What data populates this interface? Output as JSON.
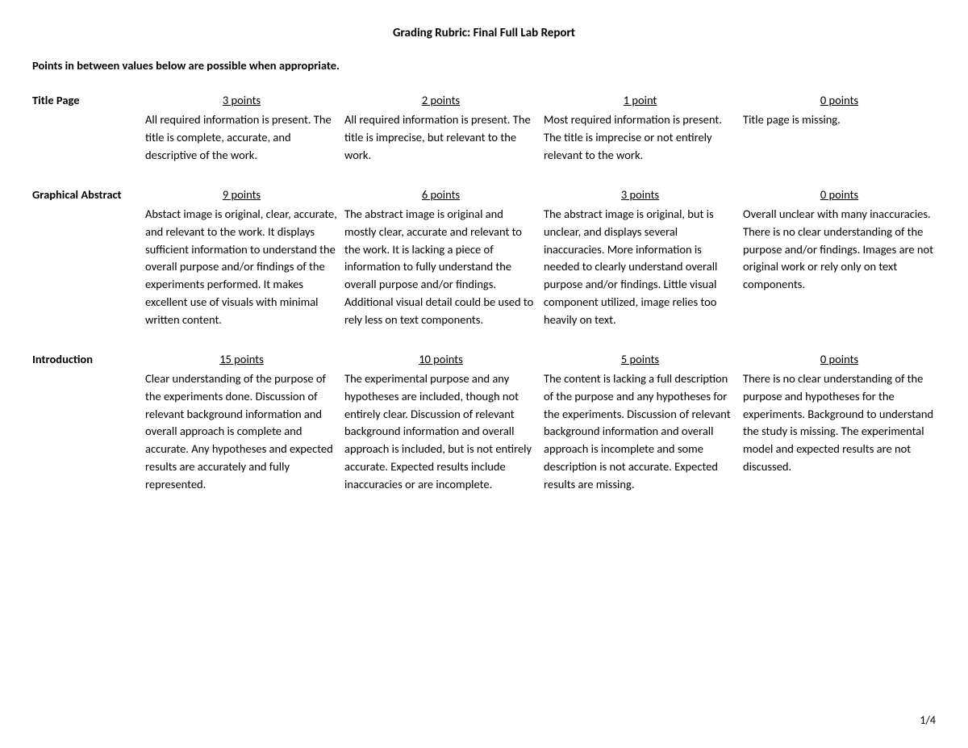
{
  "title": "Grading Rubric: Final Full Lab Report",
  "note": "Points in between values below are possible when appropriate.",
  "pager": "1/4",
  "rows": [
    {
      "label": "Title Page",
      "levels": [
        {
          "points": "3 points",
          "desc": "All required information is present. The title is complete, accurate, and descriptive of the work."
        },
        {
          "points": "2 points",
          "desc": "All required information is present. The title is imprecise, but relevant to the work."
        },
        {
          "points": "1 point",
          "desc": "Most required information is present. The title is imprecise or not entirely relevant to the work."
        },
        {
          "points": "0 points",
          "desc": "Title page is missing."
        }
      ]
    },
    {
      "label": "Graphical Abstract",
      "levels": [
        {
          "points": "9 points",
          "desc": "Abstact image is original, clear, accurate, and relevant to the work. It displays sufficient information to understand the overall purpose and/or findings of the experiments performed. It makes excellent use of visuals with minimal written content."
        },
        {
          "points": "6 points",
          "desc": "The abstract image is original and mostly clear, accurate and relevant to the work. It is lacking a piece of information to fully understand the overall purpose and/or findings. Additional visual detail could be used to rely less on text components."
        },
        {
          "points": "3 points",
          "desc": "The abstract image is original, but is unclear, and displays several inaccuracies. More information is needed to clearly understand overall purpose and/or findings. Little visual component utilized, image relies too heavily on text."
        },
        {
          "points": "0 points",
          "desc": "Overall unclear with many inaccuracies. There is no clear understanding of the purpose and/or findings. Images are not original work or rely only on text components."
        }
      ]
    },
    {
      "label": "Introduction",
      "levels": [
        {
          "points": "15 points",
          "desc": "Clear understanding of the purpose of the experiments done. Discussion of relevant background information and overall approach is complete and accurate. Any hypotheses and expected results are accurately and fully represented."
        },
        {
          "points": "10 points",
          "desc": "The experimental purpose and any hypotheses are included, though not entirely clear. Discussion of relevant background information and overall approach is included, but is not entirely accurate. Expected results include inaccuracies or are incomplete."
        },
        {
          "points": "5 points",
          "desc": "The content is lacking a full description of the purpose and any hypotheses for the experiments. Discussion of relevant background information and overall approach is incomplete and some description is not accurate. Expected results are missing."
        },
        {
          "points": "0 points",
          "desc": "There is no clear understanding of the purpose and hypotheses for the experiments. Background to understand the study is missing. The experimental model and expected results are not discussed."
        }
      ]
    }
  ]
}
